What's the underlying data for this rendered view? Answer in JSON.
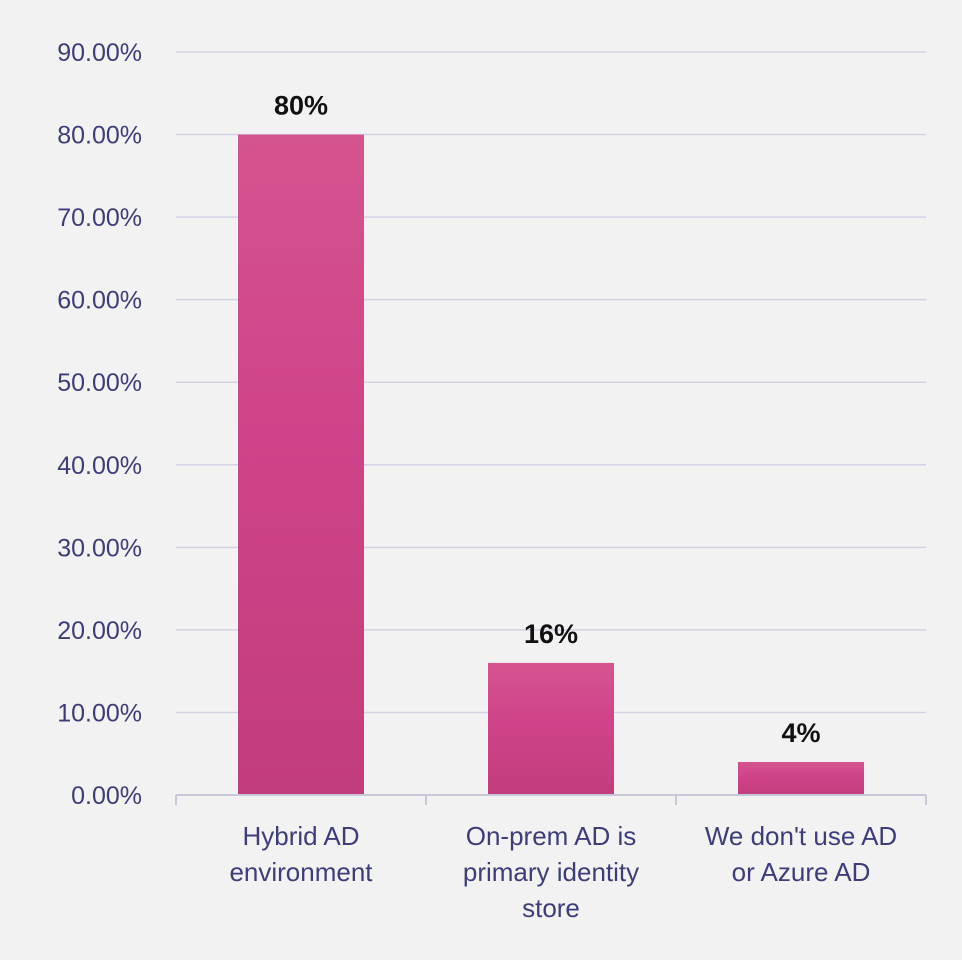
{
  "chart_data": {
    "type": "bar",
    "categories": [
      [
        "Hybrid AD",
        "environment"
      ],
      [
        "On-prem AD is",
        "primary identity",
        "store"
      ],
      [
        "We don't use AD",
        "or Azure AD"
      ]
    ],
    "values": [
      80,
      16,
      4
    ],
    "data_labels": [
      "80%",
      "16%",
      "4%"
    ],
    "yticks": [
      0,
      10,
      20,
      30,
      40,
      50,
      60,
      70,
      80,
      90
    ],
    "ytick_labels": [
      "0.00%",
      "10.00%",
      "20.00%",
      "30.00%",
      "40.00%",
      "50.00%",
      "60.00%",
      "70.00%",
      "80.00%",
      "90.00%"
    ],
    "ylim": [
      0,
      90
    ],
    "grid": true,
    "legend": "none",
    "title": "",
    "xlabel": "",
    "ylabel": "",
    "colors": {
      "bar_top": "#d4548f",
      "bar_mid": "#d0438a",
      "bar_bottom": "#c23d7c",
      "axis_text": "#3d3d7a",
      "grid": "#d2d2e6"
    }
  }
}
